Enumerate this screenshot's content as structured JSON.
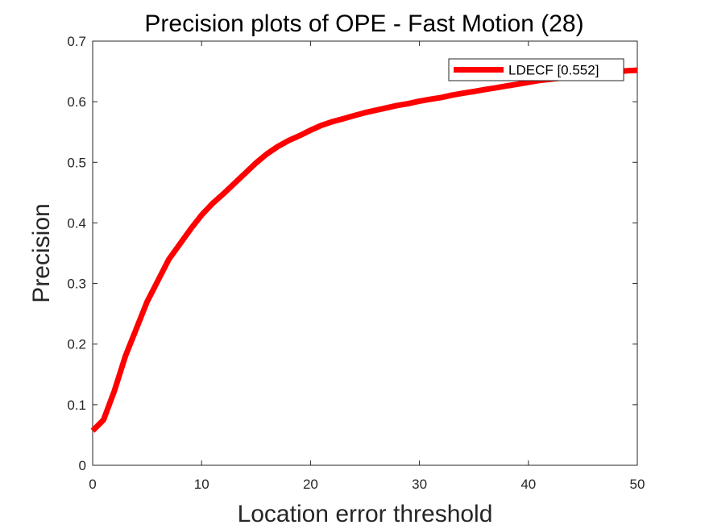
{
  "chart_data": {
    "type": "line",
    "title": "Precision plots of OPE - Fast Motion (28)",
    "xlabel": "Location error threshold",
    "ylabel": "Precision",
    "xlim": [
      0,
      50
    ],
    "ylim": [
      0,
      0.7
    ],
    "xticks": [
      "0",
      "10",
      "20",
      "30",
      "40",
      "50"
    ],
    "yticks": [
      "0",
      "0.1",
      "0.2",
      "0.3",
      "0.4",
      "0.5",
      "0.6",
      "0.7"
    ],
    "grid": false,
    "legend_position": "top-right",
    "series": [
      {
        "name": "LDECF [0.552]",
        "color": "#ff0000",
        "x": [
          0,
          1,
          2,
          3,
          4,
          5,
          6,
          7,
          8,
          9,
          10,
          11,
          12,
          13,
          14,
          15,
          16,
          17,
          18,
          19,
          20,
          21,
          22,
          23,
          24,
          25,
          26,
          27,
          28,
          29,
          30,
          31,
          32,
          33,
          34,
          35,
          36,
          37,
          38,
          39,
          40,
          41,
          42,
          43,
          44,
          45,
          46,
          47,
          48,
          49,
          50
        ],
        "y": [
          0.057,
          0.075,
          0.123,
          0.18,
          0.225,
          0.27,
          0.305,
          0.34,
          0.365,
          0.39,
          0.413,
          0.432,
          0.448,
          0.465,
          0.482,
          0.499,
          0.514,
          0.526,
          0.536,
          0.544,
          0.553,
          0.561,
          0.567,
          0.572,
          0.577,
          0.582,
          0.586,
          0.59,
          0.594,
          0.597,
          0.601,
          0.604,
          0.607,
          0.611,
          0.614,
          0.617,
          0.62,
          0.623,
          0.626,
          0.629,
          0.632,
          0.635,
          0.637,
          0.639,
          0.641,
          0.643,
          0.645,
          0.647,
          0.649,
          0.651,
          0.652
        ]
      }
    ]
  }
}
